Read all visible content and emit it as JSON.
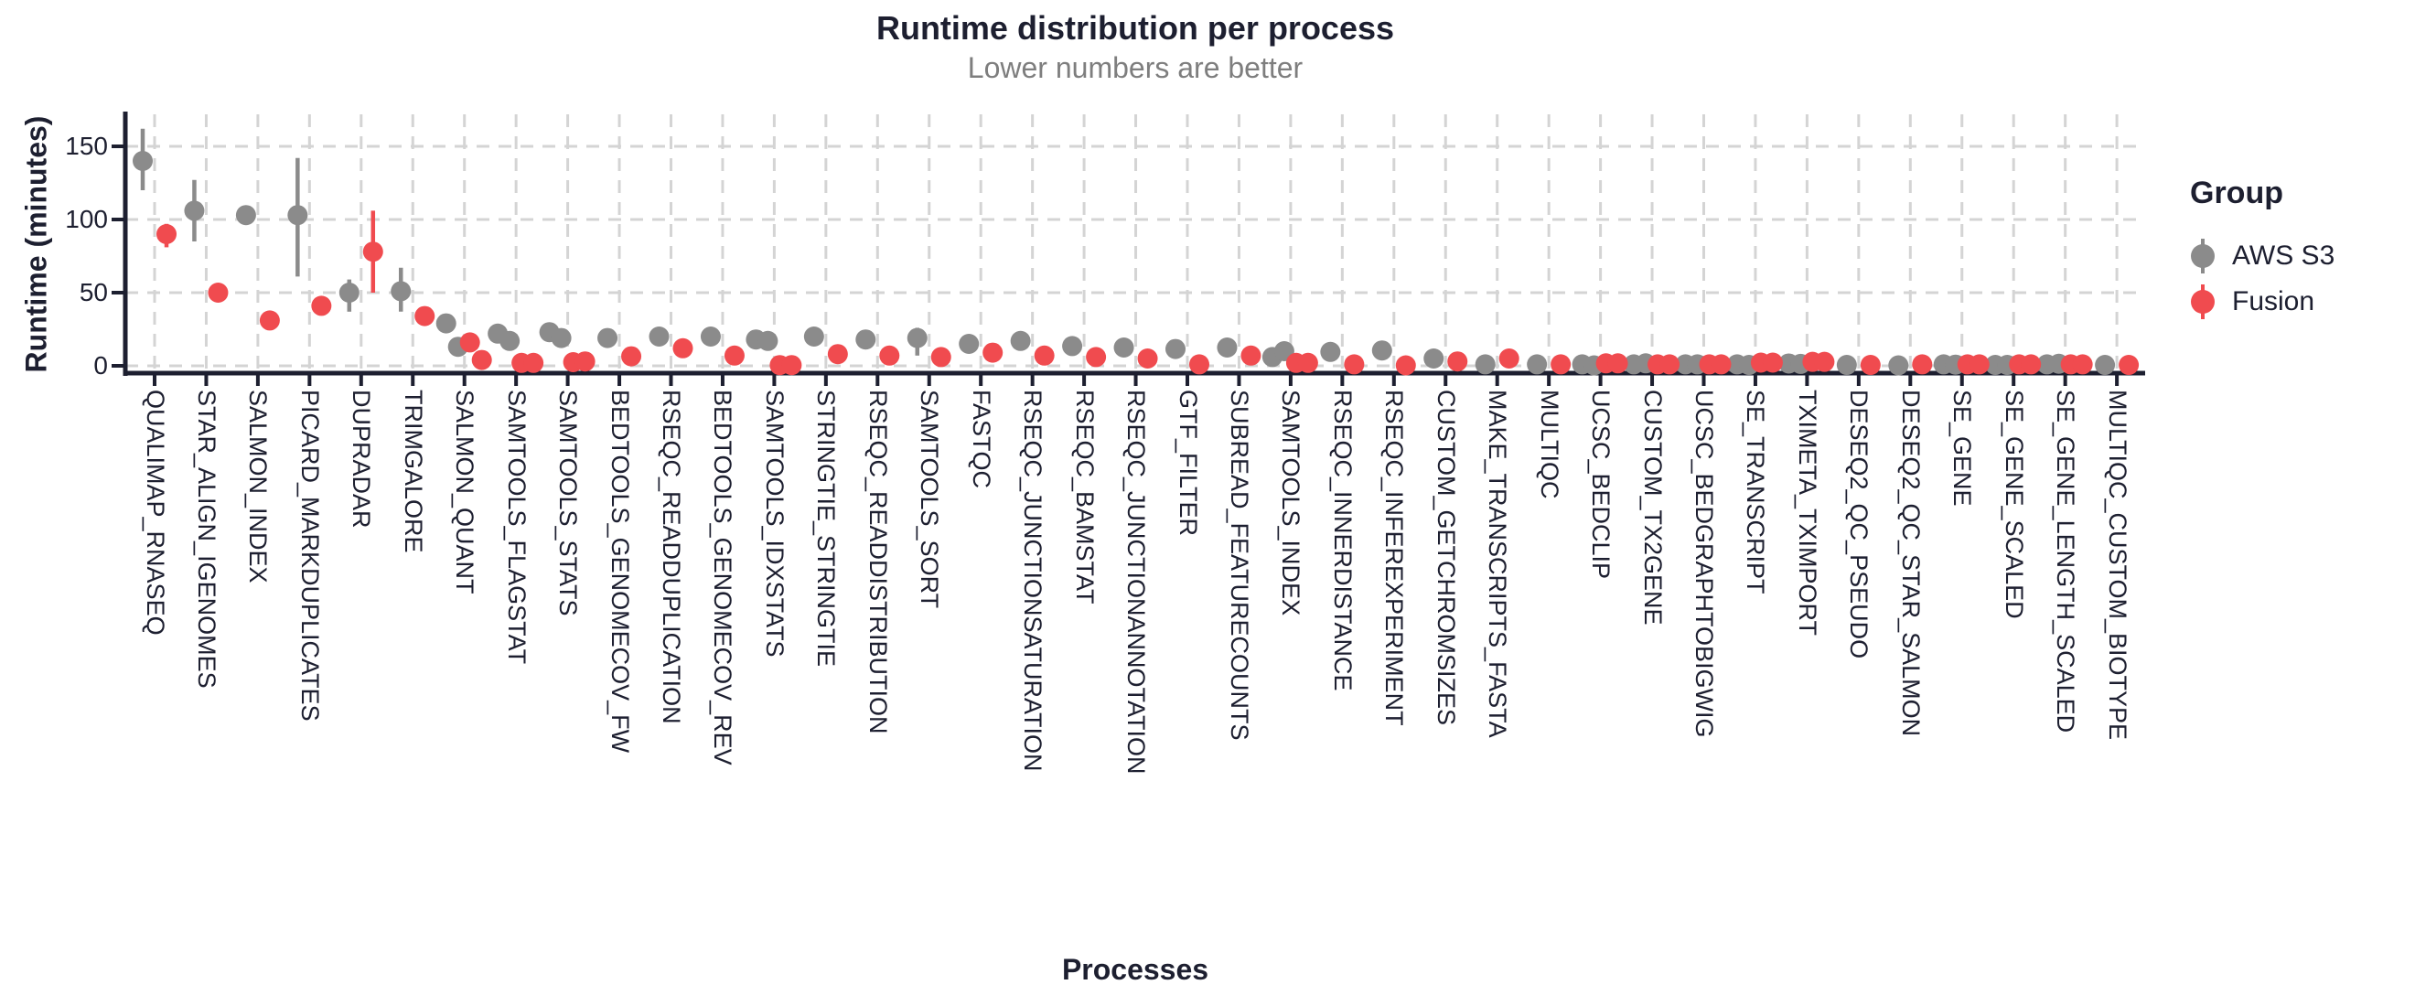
{
  "chart_data": {
    "type": "scatter",
    "title": "Runtime distribution per process",
    "subtitle": "Lower numbers are better",
    "xlabel": "Processes",
    "ylabel": "Runtime (minutes)",
    "legend_title": "Group",
    "legend_position": "right",
    "grid": "dashed",
    "ylim": [
      0,
      170
    ],
    "yticks": [
      0,
      50,
      100,
      150
    ],
    "categories": [
      "QUALIMAP_RNASEQ",
      "STAR_ALIGN_IGENOMES",
      "SALMON_INDEX",
      "PICARD_MARKDUPLICATES",
      "DUPRADAR",
      "TRIMGALORE",
      "SALMON_QUANT",
      "SAMTOOLS_FLAGSTAT",
      "SAMTOOLS_STATS",
      "BEDTOOLS_GENOMECOV_FW",
      "RSEQC_READDUPLICATION",
      "BEDTOOLS_GENOMECOV_REV",
      "SAMTOOLS_IDXSTATS",
      "STRINGTIE_STRINGTIE",
      "RSEQC_READDISTRIBUTION",
      "SAMTOOLS_SORT",
      "FASTQC",
      "RSEQC_JUNCTIONSATURATION",
      "RSEQC_BAMSTAT",
      "RSEQC_JUNCTIONANNOTATION",
      "GTF_FILTER",
      "SUBREAD_FEATURECOUNTS",
      "SAMTOOLS_INDEX",
      "RSEQC_INNERDISTANCE",
      "RSEQC_INFEREXPERIMENT",
      "CUSTOM_GETCHROMSIZES",
      "MAKE_TRANSCRIPTS_FASTA",
      "MULTIQC",
      "UCSC_BEDCLIP",
      "CUSTOM_TX2GENE",
      "UCSC_BEDGRAPHTOBIGWIG",
      "SE_TRANSCRIPT",
      "TXIMETA_TXIMPORT",
      "DESEQ2_QC_PSEUDO",
      "DESEQ2_QC_STAR_SALMON",
      "SE_GENE",
      "SE_GENE_SCALED",
      "SE_GENE_LENGTH_SCALED",
      "MULTIQC_CUSTOM_BIOTYPE"
    ],
    "series": [
      {
        "name": "AWS S3",
        "color": "#8b8b8b",
        "points": [
          [
            140
          ],
          [
            106
          ],
          [
            103
          ],
          [
            103
          ],
          [
            50
          ],
          [
            51
          ],
          [
            29,
            13
          ],
          [
            22,
            17
          ],
          [
            23,
            19
          ],
          [
            19
          ],
          [
            20
          ],
          [
            20
          ],
          [
            18,
            17
          ],
          [
            20
          ],
          [
            18
          ],
          [
            19
          ],
          [
            15
          ],
          [
            17
          ],
          [
            13.5
          ],
          [
            12.5
          ],
          [
            11.5
          ],
          [
            12.5
          ],
          [
            6,
            10
          ],
          [
            9.5
          ],
          [
            10.5
          ],
          [
            5
          ],
          [
            1
          ],
          [
            1
          ],
          [
            1,
            0.3
          ],
          [
            1,
            1.7
          ],
          [
            1,
            1
          ],
          [
            1,
            0.6
          ],
          [
            1.6,
            1.3
          ],
          [
            0.6
          ],
          [
            0.3
          ],
          [
            1,
            0.8
          ],
          [
            0.6,
            0.6
          ],
          [
            1,
            1.4
          ],
          [
            0.6
          ]
        ],
        "errors": [
          [
            120,
            162
          ],
          [
            85,
            127
          ],
          null,
          [
            61,
            142
          ],
          [
            37,
            59
          ],
          [
            37,
            67
          ],
          null,
          null,
          null,
          null,
          null,
          null,
          null,
          null,
          null,
          [
            7,
            26
          ],
          null,
          null,
          null,
          null,
          null,
          null,
          null,
          null,
          null,
          null,
          null,
          null,
          null,
          null,
          null,
          null,
          null,
          null,
          null,
          null,
          null,
          null,
          null
        ]
      },
      {
        "name": "Fusion",
        "color": "#f04b4f",
        "points": [
          [
            90
          ],
          [
            50
          ],
          [
            31
          ],
          [
            41
          ],
          [
            78
          ],
          [
            34
          ],
          [
            16,
            4
          ],
          [
            2,
            2
          ],
          [
            2.5,
            3
          ],
          [
            6.5
          ],
          [
            12
          ],
          [
            7
          ],
          [
            0.5,
            0.5
          ],
          [
            8
          ],
          [
            7
          ],
          [
            6
          ],
          [
            9
          ],
          [
            7
          ],
          [
            6
          ],
          [
            5
          ],
          [
            1
          ],
          [
            7
          ],
          [
            2,
            2
          ],
          [
            1
          ],
          [
            0.3
          ],
          [
            3
          ],
          [
            5
          ],
          [
            1
          ],
          [
            1.7,
            1.7
          ],
          [
            1,
            1
          ],
          [
            1,
            1
          ],
          [
            2.2,
            2.2
          ],
          [
            2.7,
            2.7
          ],
          [
            0.6
          ],
          [
            1
          ],
          [
            1,
            1
          ],
          [
            1,
            1
          ],
          [
            1,
            1
          ],
          [
            0.6
          ]
        ],
        "errors": [
          [
            81,
            97
          ],
          null,
          null,
          [
            36,
            46
          ],
          [
            50,
            106
          ],
          null,
          null,
          null,
          null,
          null,
          null,
          null,
          null,
          null,
          null,
          null,
          null,
          null,
          null,
          null,
          null,
          null,
          null,
          null,
          null,
          null,
          null,
          null,
          null,
          null,
          null,
          null,
          null,
          null,
          null,
          null,
          null,
          null,
          null
        ]
      }
    ],
    "colors": {
      "axis": "#1d1f30",
      "grid": "#d4d4d4",
      "background": "#ffffff",
      "title": "#1d1f30",
      "subtitle": "#7e7e7e"
    }
  }
}
